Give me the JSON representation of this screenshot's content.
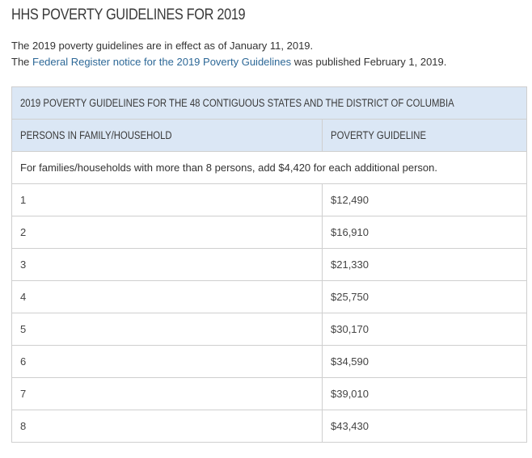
{
  "page": {
    "title": "HHS POVERTY GUIDELINES FOR 2019"
  },
  "intro": {
    "line1": "The 2019 poverty guidelines are in effect as of January 11, 2019.",
    "line2_prefix": "The ",
    "line2_link": "Federal Register notice for the 2019 Poverty Guidelines",
    "line2_suffix": " was published February 1, 2019."
  },
  "table": {
    "caption": "2019 POVERTY GUIDELINES FOR THE 48 CONTIGUOUS STATES AND THE DISTRICT OF COLUMBIA",
    "columns": [
      "PERSONS IN FAMILY/HOUSEHOLD",
      "POVERTY GUIDELINE"
    ],
    "note": "For families/households with more than 8 persons, add $4,420 for each additional person.",
    "rows": [
      {
        "persons": "1",
        "guideline": "$12,490"
      },
      {
        "persons": "2",
        "guideline": "$16,910"
      },
      {
        "persons": "3",
        "guideline": "$21,330"
      },
      {
        "persons": "4",
        "guideline": "$25,750"
      },
      {
        "persons": "5",
        "guideline": "$30,170"
      },
      {
        "persons": "6",
        "guideline": "$34,590"
      },
      {
        "persons": "7",
        "guideline": "$39,010"
      },
      {
        "persons": "8",
        "guideline": "$43,430"
      }
    ]
  },
  "colors": {
    "header_bg": "#dbe7f5",
    "link": "#2d6897",
    "border": "#cfcfcf"
  }
}
